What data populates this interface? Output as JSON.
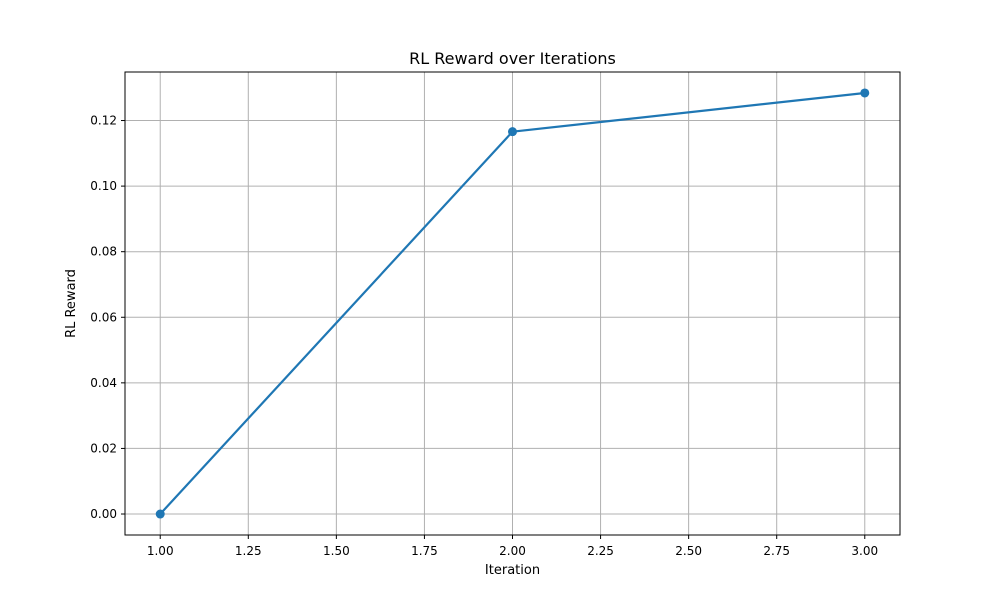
{
  "chart_data": {
    "type": "line",
    "title": "RL Reward over Iterations",
    "xlabel": "Iteration",
    "ylabel": "RL Reward",
    "xlim": [
      0.9,
      3.1
    ],
    "ylim": [
      -0.0064,
      0.1348
    ],
    "x_ticks": [
      1.0,
      1.25,
      1.5,
      1.75,
      2.0,
      2.25,
      2.5,
      2.75,
      3.0
    ],
    "x_tick_labels": [
      "1.00",
      "1.25",
      "1.50",
      "1.75",
      "2.00",
      "2.25",
      "2.50",
      "2.75",
      "3.00"
    ],
    "y_ticks": [
      0.0,
      0.02,
      0.04,
      0.06,
      0.08,
      0.1,
      0.12
    ],
    "y_tick_labels": [
      "0.00",
      "0.02",
      "0.04",
      "0.06",
      "0.08",
      "0.10",
      "0.12"
    ],
    "grid": true,
    "legend": "none",
    "series": [
      {
        "x": [
          1.0,
          2.0,
          3.0
        ],
        "y": [
          0.0,
          0.1166,
          0.1284
        ],
        "color": "#1f77b4",
        "marker": "circle"
      }
    ]
  }
}
